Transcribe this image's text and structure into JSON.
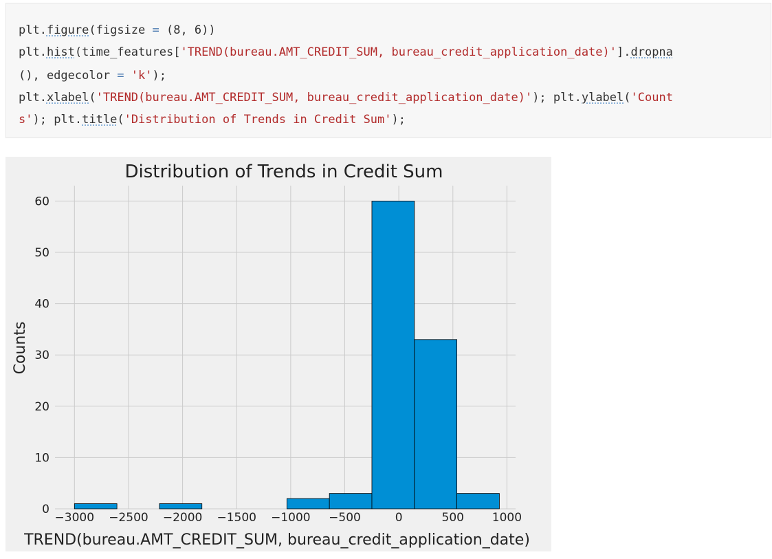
{
  "code_cell": {
    "lines": [
      [
        {
          "t": "plt."
        },
        {
          "t": "figure",
          "c": "fn"
        },
        {
          "t": "(figsize "
        },
        {
          "t": "=",
          "c": "op"
        },
        {
          "t": " (8, 6))"
        }
      ],
      [
        {
          "t": "plt."
        },
        {
          "t": "hist",
          "c": "fn"
        },
        {
          "t": "(time_features["
        },
        {
          "t": "'TREND(bureau.AMT_CREDIT_SUM, bureau_credit_application_date)'",
          "c": "str"
        },
        {
          "t": "]."
        },
        {
          "t": "dropna",
          "c": "fn"
        }
      ],
      [
        {
          "t": "(), edgecolor "
        },
        {
          "t": "=",
          "c": "op"
        },
        {
          "t": " "
        },
        {
          "t": "'k'",
          "c": "str"
        },
        {
          "t": ");"
        }
      ],
      [
        {
          "t": "plt."
        },
        {
          "t": "xlabel",
          "c": "fn"
        },
        {
          "t": "("
        },
        {
          "t": "'TREND(bureau.AMT_CREDIT_SUM, bureau_credit_application_date)'",
          "c": "str"
        },
        {
          "t": "); plt."
        },
        {
          "t": "ylabel",
          "c": "fn"
        },
        {
          "t": "("
        },
        {
          "t": "'Count",
          "c": "str"
        }
      ],
      [
        {
          "t": "s'",
          "c": "str"
        },
        {
          "t": "); plt."
        },
        {
          "t": "title",
          "c": "fn"
        },
        {
          "t": "("
        },
        {
          "t": "'Distribution of Trends in Credit Sum'",
          "c": "str"
        },
        {
          "t": ");"
        }
      ]
    ]
  },
  "chart_data": {
    "type": "bar",
    "title": "Distribution of Trends in Credit Sum",
    "xlabel": "TREND(bureau.AMT_CREDIT_SUM, bureau_credit_application_date)",
    "ylabel": "Counts",
    "xlim": [
      -3180,
      1080
    ],
    "ylim": [
      0,
      63
    ],
    "xticks": [
      -3000,
      -2500,
      -2000,
      -1500,
      -1000,
      -500,
      0,
      500,
      1000
    ],
    "xtick_labels": [
      "−3000",
      "−2500",
      "−2000",
      "−1500",
      "−1000",
      "−500",
      "0",
      "500",
      "1000"
    ],
    "yticks": [
      0,
      10,
      20,
      30,
      40,
      50,
      60
    ],
    "ytick_labels": [
      "0",
      "10",
      "20",
      "30",
      "40",
      "50",
      "60"
    ],
    "bin_edges": [
      -3000,
      -2607,
      -2214,
      -1821,
      -1428,
      -1035,
      -642,
      -249,
      144,
      537,
      930
    ],
    "counts": [
      1,
      0,
      1,
      0,
      0,
      2,
      3,
      60,
      33,
      3
    ],
    "bar_color": "#008fd5",
    "edge_color": "#000000",
    "grid": true,
    "background": "#f0f0f0"
  }
}
